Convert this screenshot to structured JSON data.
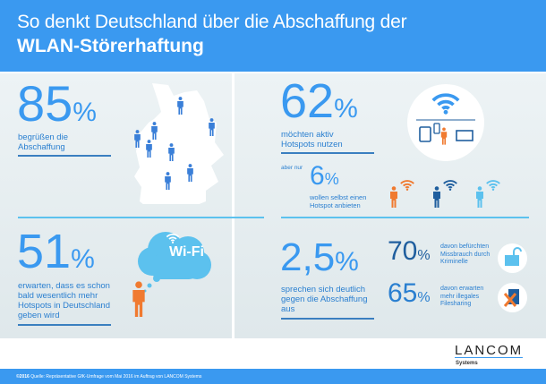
{
  "header": {
    "title_line1": "So denkt Deutschland über die Abschaffung der",
    "title_line2": "WLAN-Störerhaftung"
  },
  "stats": {
    "welcome": {
      "value": "85",
      "unit": "%",
      "text": "begrüßen die Abschaffung"
    },
    "active": {
      "value": "62",
      "unit": "%",
      "text": "möchten aktiv Hotspots nutzen"
    },
    "offer": {
      "prefix": "aber nur",
      "value": "6",
      "unit": "%",
      "text": "wollen selbst einen Hotspot anbieten"
    },
    "expect": {
      "value": "51",
      "unit": "%",
      "text": "erwarten, dass es schon bald wesentlich mehr Hotspots in Deutschland geben wird"
    },
    "against": {
      "value": "2,5",
      "unit": "%",
      "text": "sprechen sich deutlich gegen die Abschaffung aus"
    },
    "abuse": {
      "value": "70",
      "unit": "%",
      "text": "davon befürchten Missbrauch durch Kriminelle"
    },
    "filesharing": {
      "value": "65",
      "unit": "%",
      "text": "davon erwarten mehr illegales Filesharing"
    }
  },
  "cloud_label": "Wi-Fi",
  "colors": {
    "accent": "#3a99f0",
    "orange": "#f07a30",
    "dark_blue": "#1f5e9e",
    "light_blue": "#5cc1ee"
  },
  "logo": {
    "name": "LANCOM",
    "sub": "Systems"
  },
  "footer": {
    "copyright": "©2016",
    "source": "Quelle: Repräsentative GfK-Umfrage vom Mai 2016 im Auftrag von LANCOM Systems"
  }
}
